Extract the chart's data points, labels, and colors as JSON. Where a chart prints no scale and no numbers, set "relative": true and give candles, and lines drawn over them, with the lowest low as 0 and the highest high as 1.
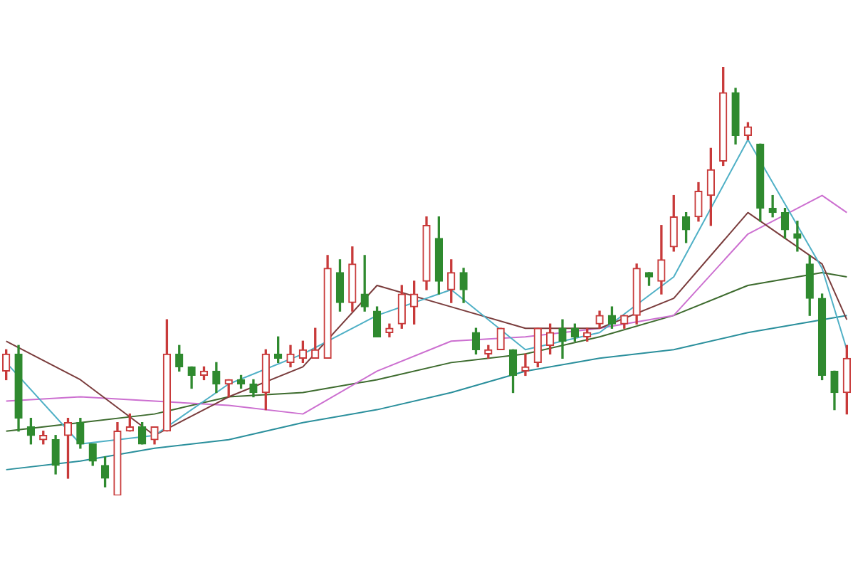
{
  "chart_data": {
    "type": "candlestick",
    "relative": true,
    "legend": false,
    "categories": [
      null,
      null,
      null,
      null,
      null,
      null,
      null,
      null,
      null,
      null,
      null,
      null,
      null,
      null,
      null,
      null,
      null,
      null,
      null,
      null,
      null,
      null,
      null,
      null,
      null,
      null,
      null,
      null,
      null,
      null,
      null,
      null,
      null,
      null,
      null,
      null,
      null,
      null,
      null,
      null,
      null,
      null,
      null,
      null,
      null,
      null,
      null,
      null,
      null,
      null,
      null,
      null,
      null,
      null,
      null,
      null,
      null,
      null,
      null,
      null,
      null,
      null,
      null,
      null,
      null,
      null,
      null,
      null,
      null
    ],
    "ohlc": [
      [
        0.29,
        0.34,
        0.27,
        0.33
      ],
      [
        0.33,
        0.35,
        0.15,
        0.18
      ],
      [
        0.16,
        0.18,
        0.12,
        0.14
      ],
      [
        0.13,
        0.15,
        0.12,
        0.14
      ],
      [
        0.13,
        0.14,
        0.05,
        0.07
      ],
      [
        0.14,
        0.18,
        0.04,
        0.17
      ],
      [
        0.17,
        0.18,
        0.11,
        0.12
      ],
      [
        0.12,
        0.12,
        0.07,
        0.08
      ],
      [
        0.07,
        0.09,
        0.02,
        0.04
      ],
      [
        0,
        0.17,
        0,
        0.15
      ],
      [
        0.15,
        0.19,
        0.15,
        0.16
      ],
      [
        0.16,
        0.17,
        0.12,
        0.12
      ],
      [
        0.13,
        0.16,
        0.12,
        0.16
      ],
      [
        0.15,
        0.41,
        0.15,
        0.33
      ],
      [
        0.33,
        0.35,
        0.29,
        0.3
      ],
      [
        0.3,
        0.3,
        0.25,
        0.28
      ],
      [
        0.28,
        0.3,
        0.27,
        0.29
      ],
      [
        0.29,
        0.31,
        0.24,
        0.26
      ],
      [
        0.26,
        0.27,
        0.23,
        0.27
      ],
      [
        0.27,
        0.28,
        0.25,
        0.26
      ],
      [
        0.26,
        0.27,
        0.23,
        0.24
      ],
      [
        0.24,
        0.34,
        0.2,
        0.33
      ],
      [
        0.33,
        0.37,
        0.31,
        0.32
      ],
      [
        0.31,
        0.35,
        0.3,
        0.33
      ],
      [
        0.32,
        0.36,
        0.31,
        0.34
      ],
      [
        0.32,
        0.39,
        0.32,
        0.34
      ],
      [
        0.32,
        0.56,
        0.32,
        0.53
      ],
      [
        0.52,
        0.55,
        0.43,
        0.45
      ],
      [
        0.45,
        0.58,
        0.43,
        0.54
      ],
      [
        0.47,
        0.56,
        0.43,
        0.44
      ],
      [
        0.43,
        0.44,
        0.37,
        0.37
      ],
      [
        0.38,
        0.4,
        0.37,
        0.39
      ],
      [
        0.4,
        0.49,
        0.39,
        0.47
      ],
      [
        0.44,
        0.5,
        0.4,
        0.47
      ],
      [
        0.5,
        0.65,
        0.48,
        0.63
      ],
      [
        0.6,
        0.65,
        0.47,
        0.5
      ],
      [
        0.48,
        0.55,
        0.45,
        0.52
      ],
      [
        0.52,
        0.53,
        0.45,
        0.48
      ],
      [
        0.38,
        0.39,
        0.33,
        0.34
      ],
      [
        0.33,
        0.35,
        0.32,
        0.34
      ],
      [
        0.34,
        0.39,
        0.34,
        0.39
      ],
      [
        0.34,
        0.34,
        0.24,
        0.28
      ],
      [
        0.29,
        0.33,
        0.28,
        0.3
      ],
      [
        0.31,
        0.39,
        0.3,
        0.39
      ],
      [
        0.35,
        0.4,
        0.33,
        0.38
      ],
      [
        0.39,
        0.41,
        0.32,
        0.36
      ],
      [
        0.39,
        0.4,
        0.36,
        0.37
      ],
      [
        0.37,
        0.39,
        0.36,
        0.38
      ],
      [
        0.4,
        0.43,
        0.39,
        0.42
      ],
      [
        0.42,
        0.44,
        0.39,
        0.4
      ],
      [
        0.4,
        0.42,
        0.39,
        0.42
      ],
      [
        0.42,
        0.54,
        0.4,
        0.53
      ],
      [
        0.52,
        0.52,
        0.49,
        0.51
      ],
      [
        0.5,
        0.63,
        0.47,
        0.55
      ],
      [
        0.58,
        0.7,
        0.57,
        0.65
      ],
      [
        0.65,
        0.66,
        0.59,
        0.62
      ],
      [
        0.65,
        0.73,
        0.64,
        0.71
      ],
      [
        0.7,
        0.81,
        0.63,
        0.76
      ],
      [
        0.78,
        1,
        0.77,
        0.94
      ],
      [
        0.94,
        0.95,
        0.82,
        0.84
      ],
      [
        0.84,
        0.87,
        0.83,
        0.86
      ],
      [
        0.82,
        0.82,
        0.64,
        0.67
      ],
      [
        0.67,
        0.7,
        0.65,
        0.66
      ],
      [
        0.66,
        0.67,
        0.6,
        0.62
      ],
      [
        0.61,
        0.64,
        0.57,
        0.6
      ],
      [
        0.54,
        0.56,
        0.42,
        0.46
      ],
      [
        0.46,
        0.47,
        0.27,
        0.28
      ],
      [
        0.29,
        0.29,
        0.2,
        0.24
      ],
      [
        0.24,
        0.35,
        0.19,
        0.32
      ]
    ],
    "colors": [
      "#c83a3a",
      "#2f8a2f",
      "#2f8a2f",
      "#c83a3a",
      "#2f8a2f",
      "#c83a3a",
      "#2f8a2f",
      "#2f8a2f",
      "#2f8a2f",
      "#c83a3a",
      "#c83a3a",
      "#2f8a2f",
      "#c83a3a",
      "#c83a3a",
      "#2f8a2f",
      "#2f8a2f",
      "#c83a3a",
      "#2f8a2f",
      "#c83a3a",
      "#2f8a2f",
      "#2f8a2f",
      "#c83a3a",
      "#2f8a2f",
      "#c83a3a",
      "#c83a3a",
      "#c83a3a",
      "#c83a3a",
      "#2f8a2f",
      "#c83a3a",
      "#2f8a2f",
      "#2f8a2f",
      "#c83a3a",
      "#c83a3a",
      "#c83a3a",
      "#c83a3a",
      "#2f8a2f",
      "#c83a3a",
      "#2f8a2f",
      "#2f8a2f",
      "#c83a3a",
      "#c83a3a",
      "#2f8a2f",
      "#c83a3a",
      "#c83a3a",
      "#c83a3a",
      "#2f8a2f",
      "#2f8a2f",
      "#c83a3a",
      "#c83a3a",
      "#2f8a2f",
      "#c83a3a",
      "#c83a3a",
      "#2f8a2f",
      "#c83a3a",
      "#c83a3a",
      "#2f8a2f",
      "#c83a3a",
      "#c83a3a",
      "#c83a3a",
      "#2f8a2f",
      "#c83a3a",
      "#2f8a2f",
      "#2f8a2f",
      "#2f8a2f",
      "#2f8a2f",
      "#2f8a2f",
      "#2f8a2f",
      "#2f8a2f",
      "#c83a3a"
    ],
    "series": [
      {
        "type": "line",
        "color": "#4fb0c6",
        "values": [
          0.31,
          null,
          null,
          null,
          null,
          null,
          0.12,
          null,
          null,
          null,
          null,
          null,
          0.14,
          null,
          null,
          null,
          null,
          null,
          0.26,
          null,
          null,
          null,
          null,
          null,
          0.33,
          null,
          null,
          null,
          null,
          null,
          0.42,
          null,
          null,
          null,
          null,
          null,
          0.48,
          null,
          null,
          null,
          null,
          null,
          0.34,
          null,
          null,
          null,
          null,
          null,
          0.38,
          null,
          null,
          null,
          null,
          null,
          0.51,
          null,
          null,
          null,
          null,
          null,
          0.83,
          null,
          null,
          null,
          null,
          null,
          0.53,
          null,
          0.34
        ]
      },
      {
        "type": "line",
        "color": "#7a3c3c",
        "values": [
          0.36,
          null,
          null,
          null,
          null,
          null,
          0.27,
          null,
          null,
          null,
          null,
          null,
          0.14,
          null,
          null,
          null,
          null,
          null,
          0.23,
          null,
          null,
          null,
          null,
          null,
          0.3,
          null,
          null,
          null,
          null,
          null,
          0.49,
          null,
          null,
          null,
          null,
          null,
          0.44,
          null,
          null,
          null,
          null,
          null,
          0.39,
          null,
          null,
          null,
          null,
          null,
          0.39,
          null,
          null,
          null,
          null,
          null,
          0.46,
          null,
          null,
          null,
          null,
          null,
          0.66,
          null,
          null,
          null,
          null,
          null,
          0.54,
          null,
          0.41
        ]
      },
      {
        "type": "line",
        "color": "#cc6fd0",
        "values": [
          0.22,
          null,
          null,
          null,
          null,
          null,
          0.23,
          null,
          null,
          null,
          null,
          null,
          0.22,
          null,
          null,
          null,
          null,
          null,
          0.21,
          null,
          null,
          null,
          null,
          null,
          0.19,
          null,
          null,
          null,
          null,
          null,
          0.29,
          null,
          null,
          null,
          null,
          null,
          0.36,
          null,
          null,
          null,
          null,
          null,
          0.37,
          null,
          null,
          null,
          null,
          null,
          0.39,
          null,
          null,
          null,
          null,
          null,
          0.42,
          null,
          null,
          null,
          null,
          null,
          0.61,
          null,
          null,
          null,
          null,
          null,
          0.7,
          null,
          0.66
        ]
      },
      {
        "type": "line",
        "color": "#3d6b2e",
        "values": [
          0.15,
          null,
          null,
          null,
          null,
          null,
          0.17,
          null,
          null,
          null,
          null,
          null,
          0.19,
          null,
          null,
          null,
          null,
          null,
          0.23,
          null,
          null,
          null,
          null,
          null,
          0.24,
          null,
          null,
          null,
          null,
          null,
          0.27,
          null,
          null,
          null,
          null,
          null,
          0.31,
          null,
          null,
          null,
          null,
          null,
          0.33,
          null,
          null,
          null,
          null,
          null,
          0.37,
          null,
          null,
          null,
          null,
          null,
          0.42,
          null,
          null,
          null,
          null,
          null,
          0.49,
          null,
          null,
          null,
          null,
          null,
          0.52,
          null,
          0.51
        ]
      },
      {
        "type": "line",
        "color": "#2a8f9c",
        "values": [
          0.06,
          null,
          null,
          null,
          null,
          null,
          0.08,
          null,
          null,
          null,
          null,
          null,
          0.11,
          null,
          null,
          null,
          null,
          null,
          0.13,
          null,
          null,
          null,
          null,
          null,
          0.17,
          null,
          null,
          null,
          null,
          null,
          0.2,
          null,
          null,
          null,
          null,
          null,
          0.24,
          null,
          null,
          null,
          null,
          null,
          0.29,
          null,
          null,
          null,
          null,
          null,
          0.32,
          null,
          null,
          null,
          null,
          null,
          0.34,
          null,
          null,
          null,
          null,
          null,
          0.38,
          null,
          null,
          null,
          null,
          null,
          0.41,
          null,
          0.42
        ]
      }
    ]
  }
}
